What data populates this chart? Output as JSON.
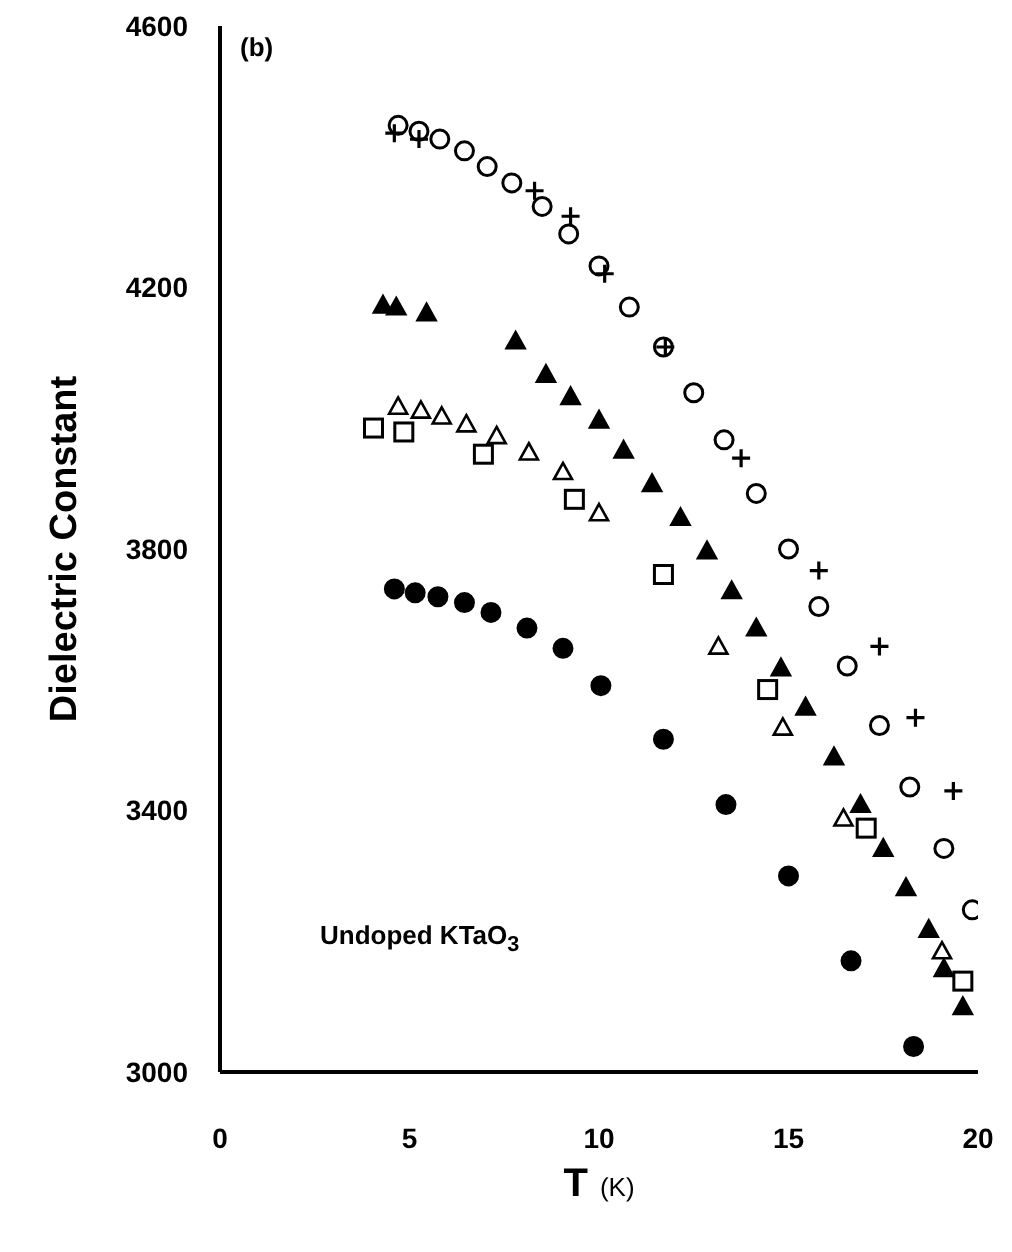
{
  "chart_data": {
    "type": "scatter",
    "xlabel": "T (K)",
    "ylabel": "Dielectric Constant",
    "annotations": [
      "(b)",
      "Undoped KTaO$_{3}$"
    ],
    "xlim": [
      0,
      20
    ],
    "xticks": [
      0,
      5,
      10,
      15,
      20
    ],
    "ylim": [
      3000,
      4600
    ],
    "yticks": [
      3000,
      3400,
      3800,
      4200,
      4600
    ],
    "grid": false,
    "legend": false,
    "series": [
      {
        "marker": "circle",
        "color": "#ffffff",
        "x": [
          4.7,
          5.25,
          5.8,
          6.45,
          7.05,
          7.7,
          8.5,
          9.2,
          10.0,
          10.8,
          11.7,
          12.5,
          13.3,
          14.15,
          15.0,
          15.8,
          16.55,
          17.4,
          18.2,
          19.1,
          19.85
        ],
        "values": [
          4448,
          4439,
          4427,
          4409,
          4385,
          4360,
          4324,
          4282,
          4233,
          4170,
          4109,
          4039,
          3967,
          3885,
          3800,
          3712,
          3621,
          3530,
          3436,
          3342,
          3248
        ]
      },
      {
        "marker": "cross",
        "color": "#000000",
        "x": [
          4.6,
          5.25,
          8.3,
          9.25,
          10.15,
          11.75,
          13.75,
          15.8,
          17.4,
          18.35,
          19.35
        ],
        "values": [
          4436,
          4427,
          4348,
          4309,
          4221,
          4109,
          3939,
          3767,
          3651,
          3542,
          3430
        ]
      },
      {
        "marker": "triangle",
        "color": "#000000",
        "x": [
          4.3,
          4.65,
          5.45,
          7.8,
          8.6,
          9.25,
          10.0,
          10.65,
          11.4,
          12.15,
          12.85,
          13.5,
          14.15,
          14.8,
          15.45,
          16.2,
          16.9,
          17.5,
          18.1,
          18.7,
          19.1,
          19.6
        ],
        "values": [
          4173,
          4170,
          4161,
          4118,
          4067,
          4033,
          3997,
          3951,
          3900,
          3848,
          3797,
          3736,
          3679,
          3618,
          3558,
          3482,
          3409,
          3342,
          3282,
          3218,
          3158,
          3100
        ]
      },
      {
        "marker": "triangle",
        "color": "#ffffff",
        "x": [
          4.7,
          5.3,
          5.85,
          6.5,
          7.3,
          8.15,
          9.05,
          10.0,
          13.15,
          14.85,
          16.45,
          19.05
        ],
        "values": [
          4018,
          4012,
          4003,
          3991,
          3973,
          3948,
          3918,
          3855,
          3651,
          3527,
          3388,
          3185
        ]
      },
      {
        "marker": "square",
        "color": "#ffffff",
        "x": [
          4.05,
          4.85,
          6.95,
          9.35,
          11.7,
          14.45,
          17.05,
          19.6
        ],
        "values": [
          3985,
          3979,
          3945,
          3876,
          3761,
          3585,
          3373,
          3139
        ]
      },
      {
        "marker": "circle",
        "color": "#000000",
        "x": [
          4.6,
          5.15,
          5.75,
          6.45,
          7.15,
          8.1,
          9.05,
          10.05,
          11.7,
          13.35,
          15.0,
          16.65,
          18.3
        ],
        "values": [
          3739,
          3733,
          3727,
          3718,
          3703,
          3679,
          3648,
          3591,
          3509,
          3409,
          3300,
          3170,
          3039
        ]
      }
    ]
  }
}
